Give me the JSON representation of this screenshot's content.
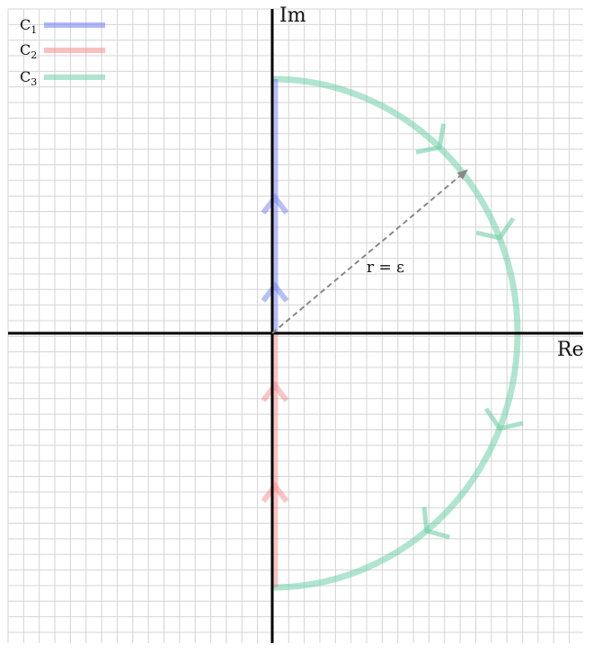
{
  "axes": {
    "x_label": "Re",
    "y_label": "Im",
    "axis_color": "#000000"
  },
  "grid": {
    "visible": true,
    "color": "#d4d4d4"
  },
  "legend": {
    "placement": "top-left",
    "entries": [
      {
        "label": "C",
        "subscript": "1",
        "color": "#6f7ff0"
      },
      {
        "label": "C",
        "subscript": "2",
        "color": "#f78a8a"
      },
      {
        "label": "C",
        "subscript": "3",
        "color": "#6fcfa8"
      }
    ]
  },
  "contours": {
    "c1": {
      "color": "#6f7ff0",
      "description_from_to": [
        "origin",
        "+i·R"
      ]
    },
    "c2": {
      "color": "#f78a8a",
      "description_from_to": [
        "-i·R",
        "origin"
      ]
    },
    "c3": {
      "color": "#6fcfa8",
      "description_from_to": [
        "+i·R",
        "-i·R"
      ]
    }
  },
  "radius": {
    "label": "r = ε",
    "color": "#888888"
  }
}
